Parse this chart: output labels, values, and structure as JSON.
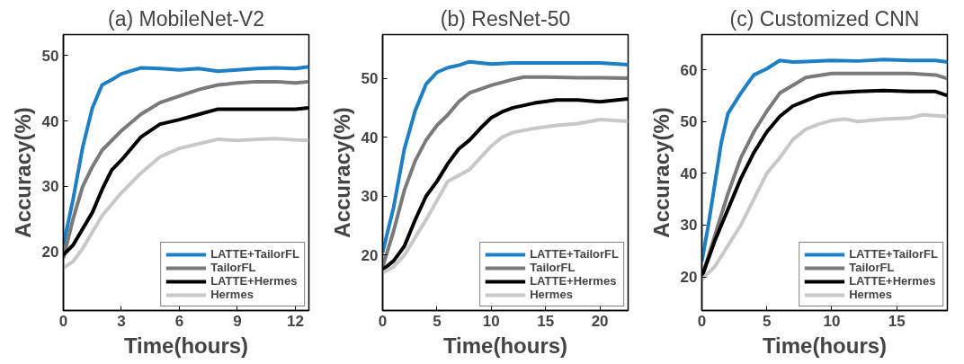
{
  "chart_data": [
    {
      "type": "line",
      "title": "(a) MobileNet-V2",
      "xlabel": "Time(hours)",
      "ylabel": "Accuracy(%)",
      "xlim": [
        0,
        12.7
      ],
      "ylim": [
        11,
        53.2
      ],
      "xticks": [
        0,
        3,
        6,
        9,
        12
      ],
      "yticks": [
        20,
        30,
        40,
        50
      ],
      "legend": "bottom right",
      "series": [
        {
          "name": "LATTE+TailorFL",
          "color": "#1f7fc4",
          "x": [
            0,
            0.5,
            1,
            1.5,
            2,
            2.5,
            3,
            4,
            5,
            6,
            7,
            8,
            9,
            10,
            11,
            12,
            12.7
          ],
          "values": [
            21,
            28,
            36,
            42,
            45.5,
            46.3,
            47.2,
            48.1,
            48,
            47.8,
            48,
            47.6,
            47.8,
            48,
            48.1,
            48,
            48.3
          ]
        },
        {
          "name": "TailorFL",
          "color": "#7a7a7a",
          "x": [
            0,
            0.5,
            1,
            1.5,
            2,
            3,
            4,
            5,
            6,
            7,
            8,
            9,
            10,
            11,
            12,
            12.7
          ],
          "values": [
            19,
            25,
            30,
            33,
            35.5,
            38.5,
            41,
            42.8,
            43.8,
            44.8,
            45.5,
            45.8,
            46,
            46,
            45.8,
            46
          ]
        },
        {
          "name": "LATTE+Hermes",
          "color": "#000000",
          "x": [
            0,
            0.5,
            1,
            1.5,
            2,
            2.5,
            3,
            4,
            5,
            6,
            7,
            8,
            9,
            10,
            11,
            12,
            12.7
          ],
          "values": [
            19.5,
            21,
            23.5,
            26,
            29.5,
            32.5,
            34,
            37.5,
            39.5,
            40.2,
            41,
            41.8,
            41.8,
            41.8,
            41.8,
            41.8,
            42
          ]
        },
        {
          "name": "Hermes",
          "color": "#c8c8c8",
          "x": [
            0,
            0.5,
            1,
            1.5,
            2,
            3,
            4,
            5,
            6,
            7,
            8,
            9,
            10,
            11,
            12,
            12.7
          ],
          "values": [
            17.5,
            18.5,
            20.5,
            23,
            25.5,
            29,
            32,
            34.5,
            35.8,
            36.5,
            37.2,
            37,
            37.2,
            37.3,
            37.1,
            37
          ]
        }
      ]
    },
    {
      "type": "line",
      "title": "(b) ResNet-50",
      "xlabel": "Time(hours)",
      "ylabel": "Accuracy(%)",
      "xlim": [
        0,
        22.6
      ],
      "ylim": [
        10.6,
        57.4
      ],
      "xticks": [
        0,
        5,
        10,
        15,
        20
      ],
      "yticks": [
        20,
        30,
        40,
        50
      ],
      "legend": "bottom right",
      "series": [
        {
          "name": "LATTE+TailorFL",
          "color": "#1f7fc4",
          "x": [
            0,
            1,
            2,
            3,
            4,
            5,
            6,
            7,
            8,
            10,
            12,
            14,
            16,
            18,
            20,
            22.6
          ],
          "values": [
            20.5,
            28,
            38,
            44.5,
            49,
            51,
            51.8,
            52.2,
            52.8,
            52.4,
            52.6,
            52.6,
            52.6,
            52.6,
            52.6,
            52.3
          ]
        },
        {
          "name": "TailorFL",
          "color": "#7a7a7a",
          "x": [
            0,
            1,
            2,
            3,
            4,
            5,
            6,
            7,
            8,
            10,
            12,
            13,
            15,
            18,
            20,
            22.6
          ],
          "values": [
            18,
            24,
            31,
            36,
            39.5,
            42,
            43.8,
            46,
            47.5,
            48.8,
            49.8,
            50.2,
            50.2,
            50.1,
            50.1,
            50
          ]
        },
        {
          "name": "LATTE+Hermes",
          "color": "#000000",
          "x": [
            0,
            1,
            2,
            3,
            4,
            5,
            6,
            7,
            8,
            9,
            10,
            11,
            12,
            14,
            16,
            18,
            20,
            22.6
          ],
          "values": [
            17.5,
            19,
            21.5,
            26,
            30,
            32.5,
            35.5,
            38,
            39.5,
            41.5,
            43.3,
            44.3,
            45,
            45.8,
            46.3,
            46.3,
            46,
            46.5
          ]
        },
        {
          "name": "Hermes",
          "color": "#c8c8c8",
          "x": [
            0,
            1,
            2,
            3,
            4,
            6,
            8,
            9,
            10,
            11,
            12,
            14,
            16,
            18,
            20,
            22.6
          ],
          "values": [
            17,
            18,
            20,
            23,
            26,
            32.5,
            34.5,
            36.5,
            38.5,
            40,
            40.8,
            41.5,
            42,
            42.3,
            43,
            42.7
          ]
        }
      ]
    },
    {
      "type": "line",
      "title": "(c) Customized CNN",
      "xlabel": "Time(hours)",
      "ylabel": "Accuracy(%)",
      "xlim": [
        0,
        18.9
      ],
      "ylim": [
        13.5,
        66.8
      ],
      "xticks": [
        0,
        5,
        10,
        15
      ],
      "yticks": [
        20,
        30,
        40,
        50,
        60
      ],
      "legend": "bottom right",
      "series": [
        {
          "name": "LATTE+TailorFL",
          "color": "#1f7fc4",
          "x": [
            0,
            0.5,
            1,
            1.5,
            2,
            3,
            4,
            5,
            6,
            7,
            8,
            10,
            12,
            14,
            16,
            18,
            18.9
          ],
          "values": [
            23,
            30,
            38,
            46,
            51.5,
            55.5,
            59,
            60.2,
            61.8,
            61.5,
            61.6,
            61.8,
            61.7,
            62,
            61.8,
            61.8,
            61.5
          ]
        },
        {
          "name": "TailorFL",
          "color": "#7a7a7a",
          "x": [
            0,
            1,
            2,
            3,
            4,
            5,
            6,
            7,
            8,
            10,
            12,
            14,
            16,
            18,
            18.9
          ],
          "values": [
            20,
            28,
            36,
            43,
            48,
            52,
            55.5,
            57,
            58.5,
            59.3,
            59.3,
            59.3,
            59.3,
            59,
            58.3
          ]
        },
        {
          "name": "LATTE+Hermes",
          "color": "#000000",
          "x": [
            0,
            1,
            2,
            3,
            4,
            5,
            6,
            7,
            8,
            9,
            10,
            12,
            14,
            16,
            18,
            18.9
          ],
          "values": [
            20,
            27,
            33,
            39,
            44,
            48,
            51,
            53,
            54,
            55,
            55.5,
            55.8,
            56,
            55.8,
            55.8,
            55
          ]
        },
        {
          "name": "Hermes",
          "color": "#c8c8c8",
          "x": [
            0,
            1,
            2,
            3,
            4,
            5,
            6,
            7,
            8,
            9,
            10,
            11,
            12,
            14,
            16,
            17,
            18.9
          ],
          "values": [
            19.5,
            22,
            26,
            30,
            35,
            40,
            43,
            46.5,
            48.5,
            49.5,
            50.2,
            50.5,
            50,
            50.5,
            50.7,
            51.3,
            51
          ]
        }
      ]
    }
  ]
}
